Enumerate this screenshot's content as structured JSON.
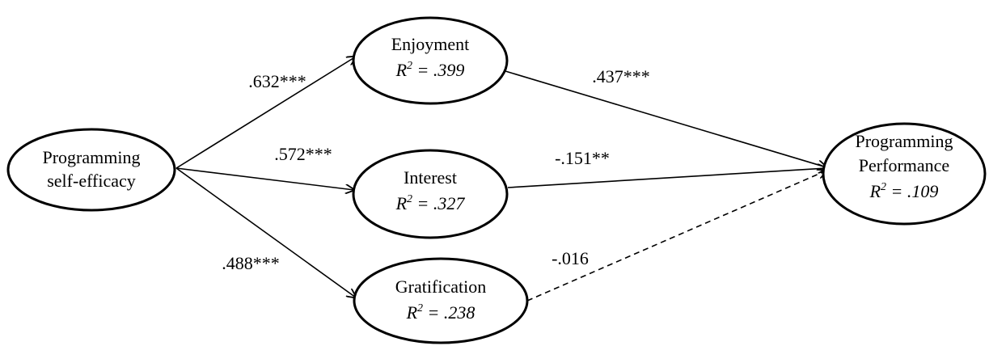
{
  "nodes": [
    {
      "label_lines": [
        "Programming",
        "self-efficacy"
      ]
    },
    {
      "label_lines": [
        "Enjoyment"
      ],
      "stat": {
        "symbol": "R",
        "sup": "2",
        "text": " = .399"
      }
    },
    {
      "label_lines": [
        "Interest"
      ],
      "stat": {
        "symbol": "R",
        "sup": "2",
        "text": " = .327"
      }
    },
    {
      "label_lines": [
        "Gratification"
      ],
      "stat": {
        "symbol": "R",
        "sup": "2",
        "text": " = .238"
      }
    },
    {
      "label_lines": [
        "Programming",
        "Performance"
      ],
      "stat": {
        "symbol": "R",
        "sup": "2",
        "text": " = .109"
      }
    }
  ],
  "edges": [
    {
      "from": 0,
      "to": 1,
      "label": ".632***"
    },
    {
      "from": 0,
      "to": 2,
      "label": ".572***"
    },
    {
      "from": 0,
      "to": 3,
      "label": ".488***"
    },
    {
      "from": 1,
      "to": 4,
      "label": ".437***"
    },
    {
      "from": 2,
      "to": 4,
      "label": "-.151**"
    },
    {
      "from": 3,
      "to": 4,
      "label": "-.016",
      "dashed": true
    }
  ]
}
